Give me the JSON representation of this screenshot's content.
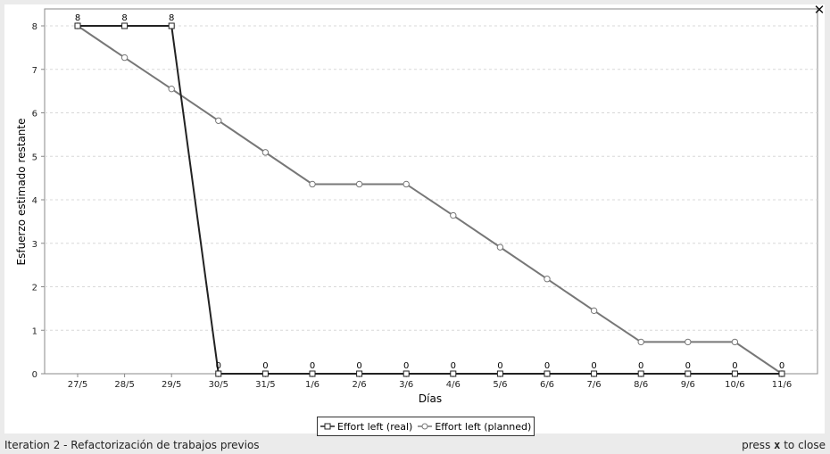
{
  "window": {
    "close_glyph": "✕",
    "footer_title": "Iteration 2 - Refactorización de trabajos previos",
    "footer_hint_prefix": "press",
    "footer_hint_key": "x",
    "footer_hint_suffix": "to close"
  },
  "chart_data": {
    "type": "line",
    "title": "",
    "xlabel": "Días",
    "ylabel": "Esfuerzo estimado restante",
    "categories": [
      "27/5",
      "28/5",
      "29/5",
      "30/5",
      "31/5",
      "1/6",
      "2/6",
      "3/6",
      "4/6",
      "5/6",
      "6/6",
      "7/6",
      "8/6",
      "9/6",
      "10/6",
      "11/6"
    ],
    "ylim": [
      0,
      8
    ],
    "yticks": [
      0,
      1,
      2,
      3,
      4,
      5,
      6,
      7,
      8
    ],
    "grid": true,
    "legend": "bottom-center",
    "series": [
      {
        "name": "Effort left (real)",
        "marker": "square",
        "color": "#222222",
        "values": [
          8,
          8,
          8,
          0,
          0,
          0,
          0,
          0,
          0,
          0,
          0,
          0,
          0,
          0,
          0,
          0
        ],
        "labels": [
          "8",
          "8",
          "8",
          "0",
          "0",
          "0",
          "0",
          "0",
          "0",
          "0",
          "0",
          "0",
          "0",
          "0",
          "0",
          "0"
        ]
      },
      {
        "name": "Effort left (planned)",
        "marker": "circle",
        "color": "#777777",
        "values": [
          8,
          7.27,
          6.55,
          5.82,
          5.09,
          4.36,
          4.36,
          4.36,
          3.64,
          2.91,
          2.18,
          1.45,
          0.73,
          0.73,
          0.73,
          0
        ]
      }
    ]
  }
}
